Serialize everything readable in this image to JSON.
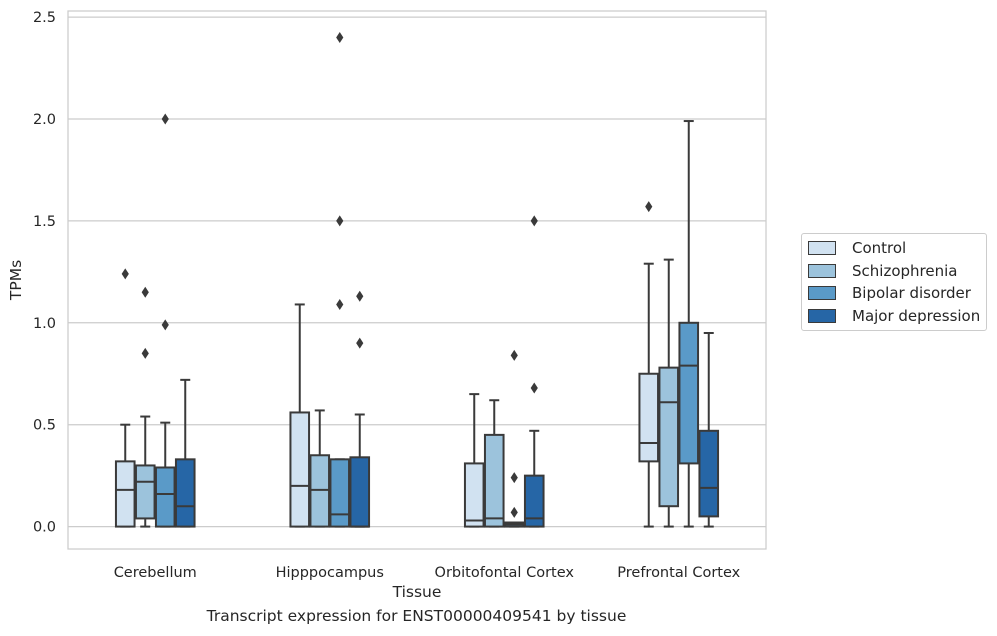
{
  "caption": "Transcript expression for ENST00000409541 by tissue",
  "chart_data": {
    "type": "box",
    "xlabel": "Tissue",
    "ylabel": "TPMs",
    "ylim": [
      -0.11,
      2.53
    ],
    "yticks": [
      0.0,
      0.5,
      1.0,
      1.5,
      2.0,
      2.5
    ],
    "ytick_labels": [
      "0.0",
      "0.5",
      "1.0",
      "1.5",
      "2.0",
      "2.5"
    ],
    "grid": true,
    "legend_position": "right",
    "categories": [
      "Cerebellum",
      "Hipppocampus",
      "Orbitofontal Cortex",
      "Prefrontal Cortex"
    ],
    "series": [
      {
        "name": "Control",
        "color": "#d1e2f1",
        "boxes": [
          {
            "whisker_low": 0.0,
            "q1": 0.0,
            "median": 0.18,
            "q3": 0.32,
            "whisker_high": 0.5,
            "outliers": [
              1.24
            ]
          },
          {
            "whisker_low": 0.0,
            "q1": 0.0,
            "median": 0.2,
            "q3": 0.56,
            "whisker_high": 1.09,
            "outliers": []
          },
          {
            "whisker_low": 0.0,
            "q1": 0.0,
            "median": 0.03,
            "q3": 0.31,
            "whisker_high": 0.65,
            "outliers": []
          },
          {
            "whisker_low": 0.0,
            "q1": 0.32,
            "median": 0.41,
            "q3": 0.75,
            "whisker_high": 1.29,
            "outliers": [
              1.57
            ]
          }
        ]
      },
      {
        "name": "Schizophrenia",
        "color": "#9cc3dc",
        "boxes": [
          {
            "whisker_low": 0.0,
            "q1": 0.04,
            "median": 0.22,
            "q3": 0.3,
            "whisker_high": 0.54,
            "outliers": [
              0.85,
              1.15
            ]
          },
          {
            "whisker_low": 0.0,
            "q1": 0.0,
            "median": 0.18,
            "q3": 0.35,
            "whisker_high": 0.57,
            "outliers": []
          },
          {
            "whisker_low": 0.0,
            "q1": 0.0,
            "median": 0.04,
            "q3": 0.45,
            "whisker_high": 0.62,
            "outliers": []
          },
          {
            "whisker_low": 0.0,
            "q1": 0.1,
            "median": 0.61,
            "q3": 0.78,
            "whisker_high": 1.31,
            "outliers": []
          }
        ]
      },
      {
        "name": "Bipolar disorder",
        "color": "#5a9ac8",
        "boxes": [
          {
            "whisker_low": 0.0,
            "q1": 0.0,
            "median": 0.16,
            "q3": 0.29,
            "whisker_high": 0.51,
            "outliers": [
              0.99,
              2.0
            ]
          },
          {
            "whisker_low": 0.0,
            "q1": 0.0,
            "median": 0.06,
            "q3": 0.33,
            "whisker_high": 0.33,
            "outliers": [
              1.09,
              1.5,
              2.4
            ]
          },
          {
            "whisker_low": 0.0,
            "q1": 0.0,
            "median": 0.01,
            "q3": 0.02,
            "whisker_high": 0.02,
            "outliers": [
              0.07,
              0.24,
              0.84
            ]
          },
          {
            "whisker_low": 0.0,
            "q1": 0.31,
            "median": 0.79,
            "q3": 1.0,
            "whisker_high": 1.99,
            "outliers": []
          }
        ]
      },
      {
        "name": "Major depression",
        "color": "#2666a6",
        "boxes": [
          {
            "whisker_low": 0.0,
            "q1": 0.0,
            "median": 0.1,
            "q3": 0.33,
            "whisker_high": 0.72,
            "outliers": []
          },
          {
            "whisker_low": 0.0,
            "q1": 0.0,
            "median": 0.0,
            "q3": 0.34,
            "whisker_high": 0.55,
            "outliers": [
              0.9,
              1.13
            ]
          },
          {
            "whisker_low": 0.0,
            "q1": 0.0,
            "median": 0.04,
            "q3": 0.25,
            "whisker_high": 0.47,
            "outliers": [
              0.68,
              1.5
            ]
          },
          {
            "whisker_low": 0.0,
            "q1": 0.05,
            "median": 0.19,
            "q3": 0.47,
            "whisker_high": 0.95,
            "outliers": []
          }
        ]
      }
    ]
  }
}
